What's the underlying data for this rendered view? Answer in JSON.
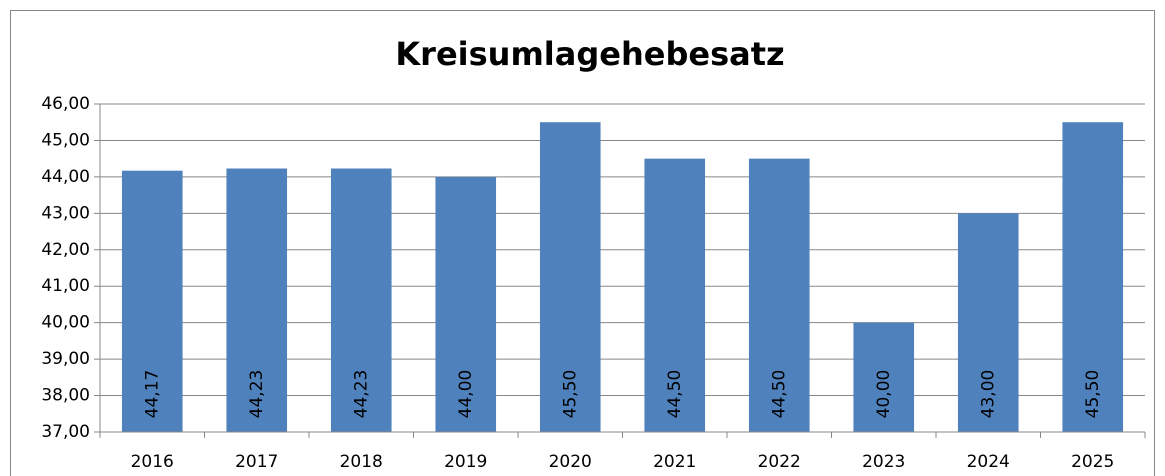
{
  "chart_data": {
    "type": "bar",
    "title": "Kreisumlagehebesatz",
    "categories": [
      "2016",
      "2017",
      "2018",
      "2019",
      "2020",
      "2021",
      "2022",
      "2023",
      "2024",
      "2025"
    ],
    "values": [
      44.17,
      44.23,
      44.23,
      44.0,
      45.5,
      44.5,
      44.5,
      40.0,
      43.0,
      45.5
    ],
    "value_labels": [
      "44,17",
      "44,23",
      "44,23",
      "44,00",
      "45,50",
      "44,50",
      "44,50",
      "40,00",
      "43,00",
      "45,50"
    ],
    "color": "#4f81bd",
    "ylim": [
      37,
      46
    ],
    "yticks": [
      {
        "value": 37,
        "label": "37,00"
      },
      {
        "value": 38,
        "label": "38,00"
      },
      {
        "value": 39,
        "label": "39,00"
      },
      {
        "value": 40,
        "label": "40,00"
      },
      {
        "value": 41,
        "label": "41,00"
      },
      {
        "value": 42,
        "label": "42,00"
      },
      {
        "value": 43,
        "label": "43,00"
      },
      {
        "value": 44,
        "label": "44,00"
      },
      {
        "value": 45,
        "label": "45,00"
      },
      {
        "value": 46,
        "label": "46,00"
      }
    ],
    "grid": true
  }
}
